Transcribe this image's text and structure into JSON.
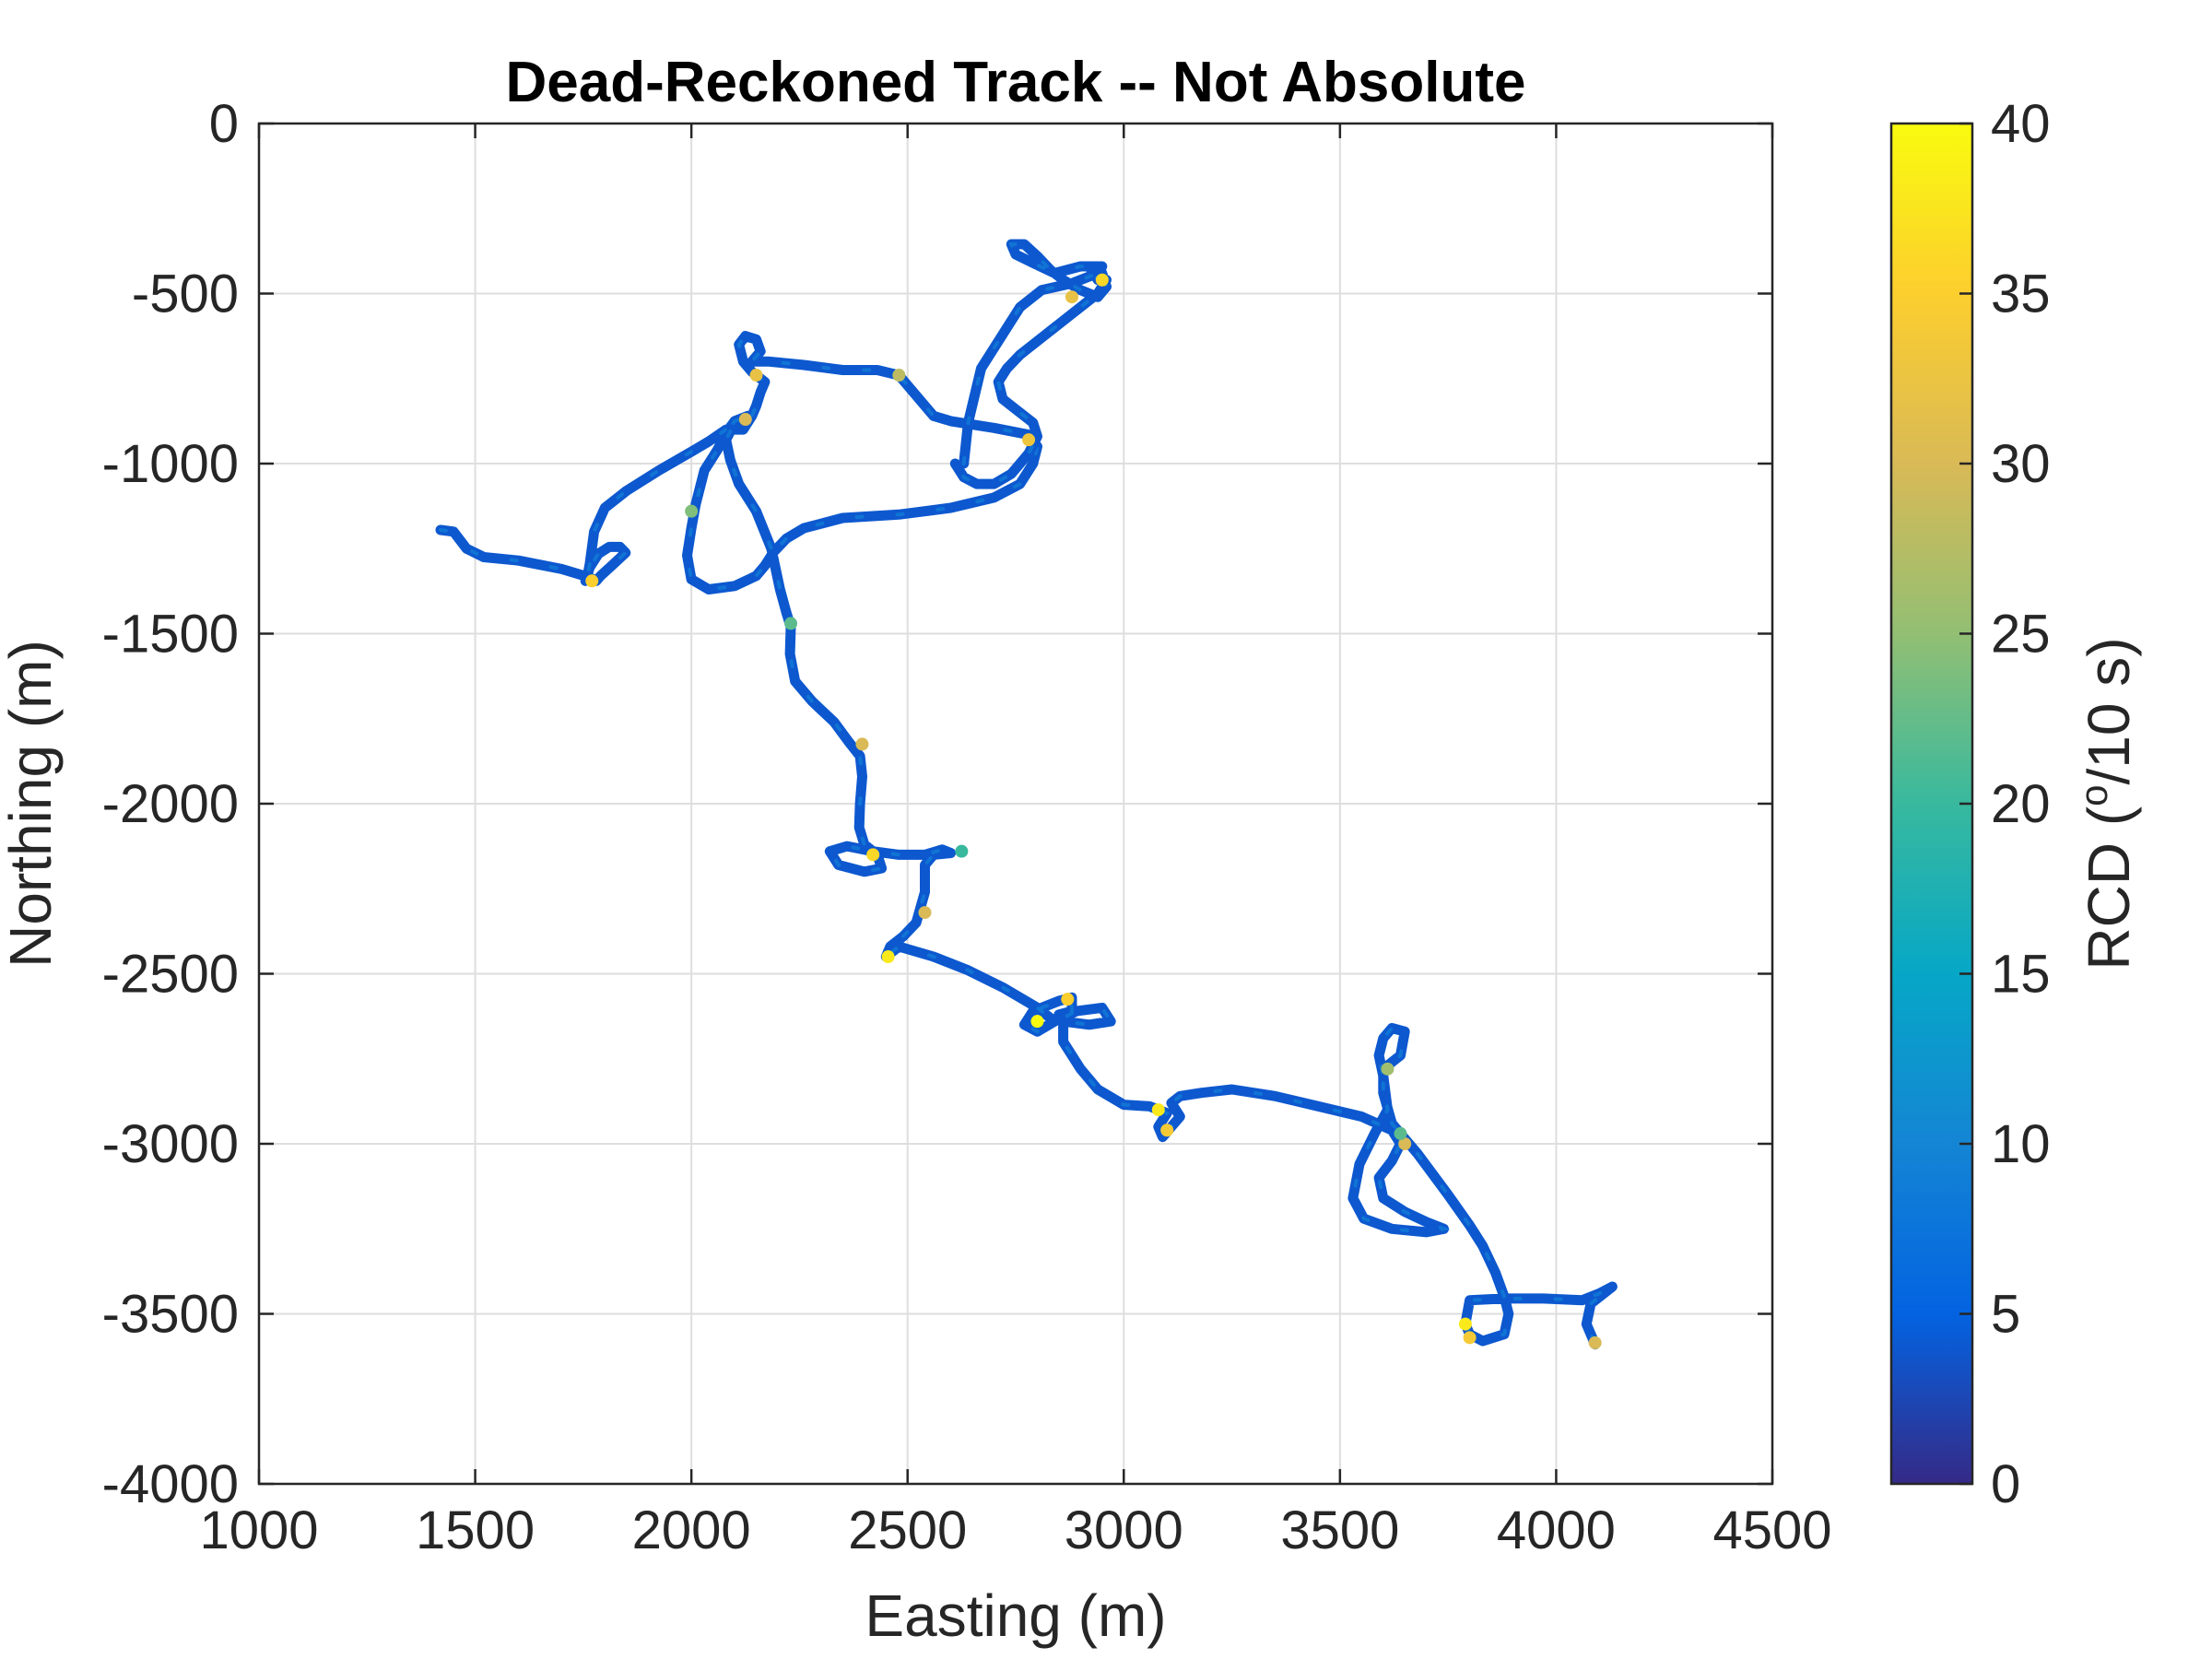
{
  "chart_data": {
    "type": "scatter",
    "title": "Dead-Reckoned Track -- Not Absolute",
    "xlabel": "Easting (m)",
    "ylabel": "Northing (m)",
    "xlim": [
      1000,
      4500
    ],
    "ylim": [
      -4000,
      0
    ],
    "xticks": [
      1000,
      1500,
      2000,
      2500,
      3000,
      3500,
      4000,
      4500
    ],
    "yticks": [
      0,
      -500,
      -1000,
      -1500,
      -2000,
      -2500,
      -3000,
      -3500,
      -4000
    ],
    "xtick_labels": [
      "1000",
      "1500",
      "2000",
      "2500",
      "3000",
      "3500",
      "4000",
      "4500"
    ],
    "ytick_labels": [
      "0",
      "-500",
      "-1000",
      "-1500",
      "-2000",
      "-2500",
      "-3000",
      "-3500",
      "-4000"
    ],
    "grid": true,
    "colorbar": {
      "label": "RCD (°/10 s)",
      "label_main": "RCD (",
      "label_sup": "o",
      "label_tail": "/10 s)",
      "range": [
        0,
        40
      ],
      "ticks": [
        0,
        5,
        10,
        15,
        20,
        25,
        30,
        35,
        40
      ],
      "tick_labels": [
        "0",
        "5",
        "10",
        "15",
        "20",
        "25",
        "30",
        "35",
        "40"
      ],
      "colormap": "parula",
      "colors": [
        "#352a87",
        "#0363e1",
        "#1485d4",
        "#06a7c6",
        "#38b99e",
        "#92bf73",
        "#d9ba56",
        "#fcce2e",
        "#f9fb0e"
      ]
    },
    "track_color_value": 4,
    "track": [
      [
        1420,
        -1195
      ],
      [
        1450,
        -1200
      ],
      [
        1480,
        -1250
      ],
      [
        1520,
        -1275
      ],
      [
        1600,
        -1285
      ],
      [
        1700,
        -1310
      ],
      [
        1765,
        -1335
      ],
      [
        1780,
        -1345
      ],
      [
        1790,
        -1330
      ],
      [
        1820,
        -1295
      ],
      [
        1848,
        -1262
      ],
      [
        1835,
        -1245
      ],
      [
        1810,
        -1245
      ],
      [
        1785,
        -1265
      ],
      [
        1765,
        -1305
      ],
      [
        1755,
        -1345
      ],
      [
        1760,
        -1330
      ],
      [
        1765,
        -1295
      ],
      [
        1775,
        -1200
      ],
      [
        1800,
        -1130
      ],
      [
        1850,
        -1080
      ],
      [
        1925,
        -1020
      ],
      [
        2000,
        -965
      ],
      [
        2040,
        -935
      ],
      [
        2080,
        -900
      ],
      [
        2120,
        -900
      ],
      [
        2130,
        -880
      ],
      [
        2140,
        -860
      ],
      [
        2150,
        -830
      ],
      [
        2160,
        -790
      ],
      [
        2170,
        -760
      ],
      [
        2140,
        -730
      ],
      [
        2120,
        -700
      ],
      [
        2110,
        -650
      ],
      [
        2125,
        -625
      ],
      [
        2150,
        -635
      ],
      [
        2160,
        -670
      ],
      [
        2140,
        -700
      ],
      [
        2180,
        -700
      ],
      [
        2260,
        -710
      ],
      [
        2350,
        -725
      ],
      [
        2430,
        -725
      ],
      [
        2480,
        -740
      ],
      [
        2520,
        -800
      ],
      [
        2560,
        -860
      ],
      [
        2600,
        -875
      ],
      [
        2700,
        -895
      ],
      [
        2780,
        -915
      ],
      [
        2800,
        -950
      ],
      [
        2790,
        -1000
      ],
      [
        2760,
        -1060
      ],
      [
        2700,
        -1100
      ],
      [
        2600,
        -1130
      ],
      [
        2480,
        -1150
      ],
      [
        2350,
        -1160
      ],
      [
        2260,
        -1190
      ],
      [
        2220,
        -1220
      ],
      [
        2190,
        -1260
      ],
      [
        2170,
        -1300
      ],
      [
        2150,
        -1330
      ],
      [
        2100,
        -1360
      ],
      [
        2040,
        -1370
      ],
      [
        2000,
        -1340
      ],
      [
        1990,
        -1270
      ],
      [
        2000,
        -1190
      ],
      [
        2010,
        -1120
      ],
      [
        2030,
        -1020
      ],
      [
        2060,
        -960
      ],
      [
        2080,
        -910
      ],
      [
        2100,
        -875
      ],
      [
        2130,
        -860
      ],
      [
        2100,
        -880
      ],
      [
        2080,
        -930
      ],
      [
        2090,
        -990
      ],
      [
        2110,
        -1060
      ],
      [
        2150,
        -1140
      ],
      [
        2185,
        -1250
      ],
      [
        2205,
        -1370
      ],
      [
        2220,
        -1440
      ],
      [
        2230,
        -1480
      ],
      [
        2228,
        -1560
      ],
      [
        2240,
        -1640
      ],
      [
        2280,
        -1700
      ],
      [
        2330,
        -1760
      ],
      [
        2365,
        -1820
      ],
      [
        2390,
        -1860
      ],
      [
        2395,
        -1920
      ],
      [
        2390,
        -2000
      ],
      [
        2388,
        -2070
      ],
      [
        2400,
        -2120
      ],
      [
        2430,
        -2150
      ],
      [
        2440,
        -2190
      ],
      [
        2400,
        -2200
      ],
      [
        2340,
        -2180
      ],
      [
        2320,
        -2140
      ],
      [
        2360,
        -2125
      ],
      [
        2420,
        -2140
      ],
      [
        2480,
        -2150
      ],
      [
        2540,
        -2150
      ],
      [
        2580,
        -2135
      ],
      [
        2600,
        -2145
      ],
      [
        2560,
        -2150
      ],
      [
        2540,
        -2180
      ],
      [
        2540,
        -2260
      ],
      [
        2520,
        -2350
      ],
      [
        2490,
        -2390
      ],
      [
        2460,
        -2420
      ],
      [
        2450,
        -2450
      ],
      [
        2480,
        -2420
      ],
      [
        2560,
        -2450
      ],
      [
        2640,
        -2490
      ],
      [
        2720,
        -2540
      ],
      [
        2800,
        -2600
      ],
      [
        2840,
        -2640
      ],
      [
        2800,
        -2670
      ],
      [
        2770,
        -2650
      ],
      [
        2790,
        -2610
      ],
      [
        2850,
        -2580
      ],
      [
        2880,
        -2570
      ],
      [
        2880,
        -2610
      ],
      [
        2850,
        -2620
      ],
      [
        2860,
        -2640
      ],
      [
        2920,
        -2650
      ],
      [
        2970,
        -2640
      ],
      [
        2950,
        -2600
      ],
      [
        2890,
        -2610
      ],
      [
        2860,
        -2630
      ],
      [
        2860,
        -2700
      ],
      [
        2900,
        -2780
      ],
      [
        2940,
        -2840
      ],
      [
        3000,
        -2885
      ],
      [
        3060,
        -2890
      ],
      [
        3100,
        -2910
      ],
      [
        3080,
        -2950
      ],
      [
        3090,
        -2980
      ],
      [
        3110,
        -2950
      ],
      [
        3130,
        -2920
      ],
      [
        3110,
        -2880
      ],
      [
        3130,
        -2860
      ],
      [
        3180,
        -2850
      ],
      [
        3250,
        -2840
      ],
      [
        3350,
        -2860
      ],
      [
        3450,
        -2890
      ],
      [
        3550,
        -2920
      ],
      [
        3620,
        -2960
      ],
      [
        3640,
        -3000
      ],
      [
        3620,
        -3050
      ],
      [
        3590,
        -3100
      ],
      [
        3600,
        -3160
      ],
      [
        3650,
        -3200
      ],
      [
        3700,
        -3230
      ],
      [
        3740,
        -3250
      ],
      [
        3700,
        -3260
      ],
      [
        3620,
        -3250
      ],
      [
        3555,
        -3220
      ],
      [
        3530,
        -3160
      ],
      [
        3545,
        -3060
      ],
      [
        3580,
        -2970
      ],
      [
        3610,
        -2900
      ],
      [
        3600,
        -2800
      ],
      [
        3590,
        -2740
      ],
      [
        3600,
        -2690
      ],
      [
        3620,
        -2660
      ],
      [
        3650,
        -2670
      ],
      [
        3640,
        -2740
      ],
      [
        3600,
        -2780
      ],
      [
        3600,
        -2850
      ],
      [
        3620,
        -2940
      ],
      [
        3680,
        -3030
      ],
      [
        3750,
        -3150
      ],
      [
        3800,
        -3240
      ],
      [
        3830,
        -3300
      ],
      [
        3860,
        -3380
      ],
      [
        3880,
        -3450
      ],
      [
        3890,
        -3500
      ],
      [
        3880,
        -3560
      ],
      [
        3830,
        -3580
      ],
      [
        3800,
        -3560
      ],
      [
        3790,
        -3530
      ],
      [
        3800,
        -3460
      ],
      [
        3880,
        -3455
      ],
      [
        3970,
        -3455
      ],
      [
        4060,
        -3460
      ],
      [
        4100,
        -3440
      ],
      [
        4130,
        -3420
      ],
      [
        4110,
        -3440
      ],
      [
        4080,
        -3470
      ],
      [
        4070,
        -3530
      ],
      [
        4090,
        -3590
      ]
    ],
    "hotspots": [
      [
        1770,
        -1345,
        35
      ],
      [
        2125,
        -870,
        30
      ],
      [
        2150,
        -740,
        32
      ],
      [
        2480,
        -740,
        28
      ],
      [
        2780,
        -930,
        33
      ],
      [
        2395,
        -1825,
        30
      ],
      [
        2420,
        -2150,
        36
      ],
      [
        2540,
        -2320,
        30
      ],
      [
        2455,
        -2450,
        38
      ],
      [
        2800,
        -2640,
        40
      ],
      [
        2870,
        -2575,
        35
      ],
      [
        3080,
        -2900,
        38
      ],
      [
        3100,
        -2960,
        34
      ],
      [
        3610,
        -2780,
        26
      ],
      [
        3650,
        -3000,
        30
      ],
      [
        3790,
        -3530,
        38
      ],
      [
        3800,
        -3570,
        34
      ],
      [
        3640,
        -2970,
        22
      ],
      [
        4090,
        -3585,
        30
      ],
      [
        2000,
        -1140,
        24
      ],
      [
        2230,
        -1470,
        22
      ],
      [
        2625,
        -2140,
        20
      ],
      [
        2950,
        -460,
        36
      ],
      [
        2880,
        -510,
        32
      ]
    ],
    "loop_track": [
      [
        2630,
        -1000
      ],
      [
        2640,
        -880
      ],
      [
        2670,
        -720
      ],
      [
        2730,
        -600
      ],
      [
        2760,
        -540
      ],
      [
        2810,
        -490
      ],
      [
        2880,
        -470
      ],
      [
        2940,
        -440
      ],
      [
        2950,
        -420
      ],
      [
        2900,
        -420
      ],
      [
        2840,
        -440
      ],
      [
        2790,
        -410
      ],
      [
        2750,
        -385
      ],
      [
        2740,
        -355
      ],
      [
        2770,
        -355
      ],
      [
        2800,
        -390
      ],
      [
        2830,
        -430
      ],
      [
        2860,
        -460
      ],
      [
        2900,
        -490
      ],
      [
        2940,
        -510
      ],
      [
        2960,
        -480
      ],
      [
        2950,
        -440
      ],
      [
        2920,
        -420
      ],
      [
        2940,
        -460
      ],
      [
        2960,
        -460
      ],
      [
        2940,
        -500
      ],
      [
        2880,
        -560
      ],
      [
        2830,
        -610
      ],
      [
        2790,
        -650
      ],
      [
        2760,
        -680
      ],
      [
        2730,
        -720
      ],
      [
        2710,
        -760
      ],
      [
        2720,
        -810
      ],
      [
        2760,
        -850
      ],
      [
        2790,
        -880
      ],
      [
        2800,
        -920
      ],
      [
        2780,
        -970
      ],
      [
        2760,
        -1000
      ],
      [
        2740,
        -1030
      ],
      [
        2700,
        -1060
      ],
      [
        2660,
        -1060
      ],
      [
        2630,
        -1040
      ],
      [
        2610,
        -1000
      ]
    ]
  }
}
